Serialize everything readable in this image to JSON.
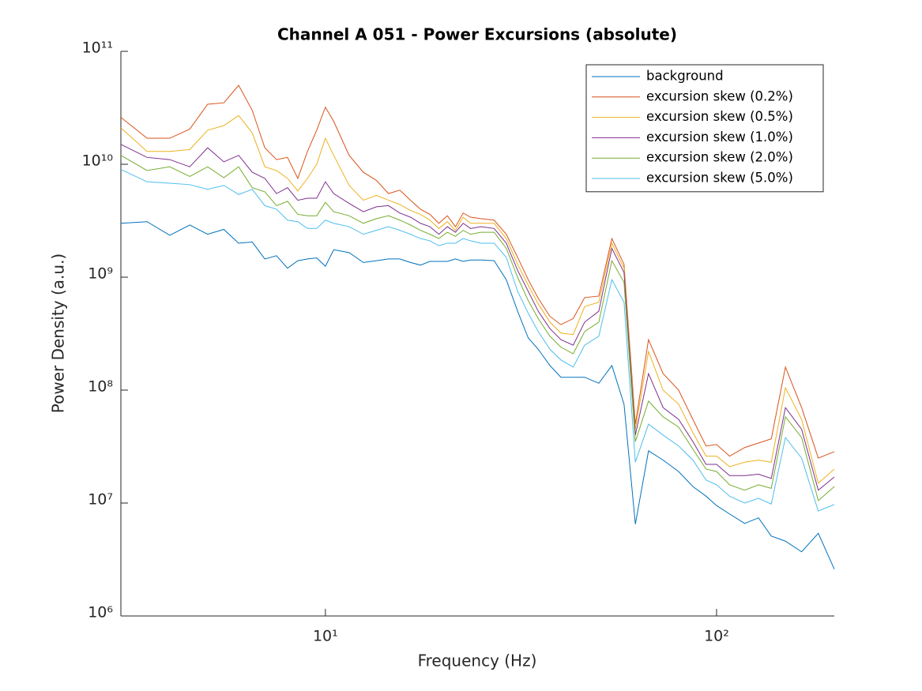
{
  "chart_data": {
    "type": "line",
    "title": "Channel A 051 - Power Excursions (absolute)",
    "x_label": "Frequency (Hz)",
    "y_label": "Power Density (a.u.)",
    "x_scale": "log",
    "y_scale": "log",
    "xlim": [
      3,
      200
    ],
    "ylim": [
      1000000,
      100000000000
    ],
    "xticks": [
      {
        "value": 10,
        "label": "10¹"
      },
      {
        "value": 100,
        "label": "10²"
      }
    ],
    "yticks": [
      {
        "value": 1000000,
        "label": "10⁶"
      },
      {
        "value": 10000000,
        "label": "10⁷"
      },
      {
        "value": 100000000,
        "label": "10⁸"
      },
      {
        "value": 1000000000,
        "label": "10⁹"
      },
      {
        "value": 10000000000,
        "label": "10¹⁰"
      },
      {
        "value": 100000000000,
        "label": "10¹¹"
      }
    ],
    "grid": false,
    "legend_position": "northeast",
    "x": [
      3,
      3.5,
      4,
      4.5,
      5,
      5.5,
      6,
      6.5,
      7,
      7.5,
      8,
      8.5,
      9,
      9.5,
      10,
      10.5,
      11.5,
      12.5,
      13.5,
      14.5,
      15.5,
      16.5,
      17.5,
      18.5,
      19.5,
      20.5,
      21.5,
      22.5,
      23.5,
      25,
      27,
      29,
      31,
      33,
      35,
      37.5,
      40,
      43,
      46,
      50,
      54,
      58,
      62,
      67,
      73,
      80,
      87,
      94,
      100,
      108,
      118,
      128,
      138,
      150,
      165,
      182,
      200
    ],
    "series": [
      {
        "name": "background",
        "color": "#0072BD",
        "values": [
          3000000000.0,
          3100000000.0,
          2350000000.0,
          2900000000.0,
          2400000000.0,
          2650000000.0,
          2000000000.0,
          2050000000.0,
          1450000000.0,
          1550000000.0,
          1200000000.0,
          1400000000.0,
          1450000000.0,
          1480000000.0,
          1250000000.0,
          1750000000.0,
          1650000000.0,
          1350000000.0,
          1400000000.0,
          1450000000.0,
          1450000000.0,
          1350000000.0,
          1280000000.0,
          1380000000.0,
          1380000000.0,
          1380000000.0,
          1450000000.0,
          1380000000.0,
          1420000000.0,
          1420000000.0,
          1400000000.0,
          950000000.0,
          500000000.0,
          290000000.0,
          230000000.0,
          165000000.0,
          130000000.0,
          130000000.0,
          130000000.0,
          115000000.0,
          165000000.0,
          75000000.0,
          6500000.0,
          29000000.0,
          24000000.0,
          19000000.0,
          14000000.0,
          11500000.0,
          9500000.0,
          8000000.0,
          6600000.0,
          7400000.0,
          5100000.0,
          4600000.0,
          3700000.0,
          5400000.0,
          2600000.0
        ]
      },
      {
        "name": "excursion skew (0.2%)",
        "color": "#D95319",
        "values": [
          26000000000.0,
          17000000000.0,
          17000000000.0,
          20500000000.0,
          34000000000.0,
          35000000000.0,
          50000000000.0,
          30000000000.0,
          14000000000.0,
          11000000000.0,
          11500000000.0,
          7500000000.0,
          13000000000.0,
          20000000000.0,
          32000000000.0,
          24000000000.0,
          12000000000.0,
          8500000000.0,
          7200000000.0,
          5500000000.0,
          5900000000.0,
          4800000000.0,
          4000000000.0,
          3600000000.0,
          3000000000.0,
          3500000000.0,
          2800000000.0,
          3700000000.0,
          3400000000.0,
          3300000000.0,
          3200000000.0,
          2400000000.0,
          1500000000.0,
          950000000.0,
          650000000.0,
          450000000.0,
          380000000.0,
          430000000.0,
          660000000.0,
          680000000.0,
          2200000000.0,
          1300000000.0,
          50000000.0,
          280000000.0,
          140000000.0,
          100000000.0,
          55000000.0,
          32000000.0,
          33000000.0,
          26000000.0,
          31000000.0,
          34000000.0,
          37000000.0,
          160000000.0,
          70000000.0,
          25000000.0,
          28500000.0
        ]
      },
      {
        "name": "excursion skew (0.5%)",
        "color": "#EDB120",
        "values": [
          21000000000.0,
          13000000000.0,
          13000000000.0,
          13500000000.0,
          20000000000.0,
          22000000000.0,
          27000000000.0,
          19000000000.0,
          9500000000.0,
          8800000000.0,
          7500000000.0,
          5800000000.0,
          7500000000.0,
          10000000000.0,
          17000000000.0,
          12000000000.0,
          6500000000.0,
          4800000000.0,
          5300000000.0,
          4800000000.0,
          4400000000.0,
          3900000000.0,
          3600000000.0,
          3200000000.0,
          2700000000.0,
          3100000000.0,
          2600000000.0,
          3400000000.0,
          3000000000.0,
          3000000000.0,
          3000000000.0,
          2200000000.0,
          1300000000.0,
          850000000.0,
          580000000.0,
          400000000.0,
          320000000.0,
          310000000.0,
          550000000.0,
          600000000.0,
          2000000000.0,
          1200000000.0,
          45000000.0,
          220000000.0,
          100000000.0,
          75000000.0,
          42000000.0,
          26000000.0,
          26000000.0,
          21000000.0,
          23000000.0,
          24000000.0,
          23000000.0,
          105000000.0,
          55000000.0,
          15000000.0,
          20000000.0
        ]
      },
      {
        "name": "excursion skew (1.0%)",
        "color": "#7E2F8E",
        "values": [
          15000000000.0,
          11500000000.0,
          11000000000.0,
          9500000000.0,
          14000000000.0,
          10500000000.0,
          12000000000.0,
          8500000000.0,
          7500000000.0,
          5500000000.0,
          6200000000.0,
          4800000000.0,
          5000000000.0,
          5000000000.0,
          7000000000.0,
          5500000000.0,
          4500000000.0,
          3800000000.0,
          4200000000.0,
          4300000000.0,
          3700000000.0,
          3400000000.0,
          3000000000.0,
          2800000000.0,
          2400000000.0,
          2800000000.0,
          2500000000.0,
          3000000000.0,
          2700000000.0,
          2800000000.0,
          2700000000.0,
          2000000000.0,
          1150000000.0,
          750000000.0,
          500000000.0,
          350000000.0,
          280000000.0,
          250000000.0,
          400000000.0,
          500000000.0,
          1800000000.0,
          1100000000.0,
          40000000.0,
          140000000.0,
          70000000.0,
          55000000.0,
          35000000.0,
          22000000.0,
          22000000.0,
          17500000.0,
          17500000.0,
          18000000.0,
          16500000.0,
          70000000.0,
          45000000.0,
          13000000.0,
          17000000.0
        ]
      },
      {
        "name": "excursion skew (2.0%)",
        "color": "#77AC30",
        "values": [
          12000000000.0,
          8800000000.0,
          9500000000.0,
          7800000000.0,
          9500000000.0,
          7600000000.0,
          9500000000.0,
          6200000000.0,
          5700000000.0,
          4300000000.0,
          4700000000.0,
          3600000000.0,
          3500000000.0,
          3500000000.0,
          4600000000.0,
          3800000000.0,
          3500000000.0,
          3000000000.0,
          3300000000.0,
          3500000000.0,
          3200000000.0,
          2900000000.0,
          2600000000.0,
          2400000000.0,
          2200000000.0,
          2500000000.0,
          2300000000.0,
          2600000000.0,
          2400000000.0,
          2500000000.0,
          2500000000.0,
          1800000000.0,
          1000000000.0,
          620000000.0,
          430000000.0,
          300000000.0,
          240000000.0,
          210000000.0,
          330000000.0,
          400000000.0,
          1400000000.0,
          900000000.0,
          35000000.0,
          80000000.0,
          58000000.0,
          47000000.0,
          30000000.0,
          20000000.0,
          19000000.0,
          14500000.0,
          13000000.0,
          14500000.0,
          13500000.0,
          58000000.0,
          38000000.0,
          10500000.0,
          14000000.0
        ]
      },
      {
        "name": "excursion skew (5.0%)",
        "color": "#4DBEEE",
        "values": [
          9000000000.0,
          7000000000.0,
          6800000000.0,
          6600000000.0,
          6000000000.0,
          6500000000.0,
          5400000000.0,
          6000000000.0,
          4300000000.0,
          4000000000.0,
          3200000000.0,
          3100000000.0,
          2700000000.0,
          2700000000.0,
          3200000000.0,
          3000000000.0,
          2800000000.0,
          2400000000.0,
          2600000000.0,
          2800000000.0,
          2600000000.0,
          2400000000.0,
          2200000000.0,
          2100000000.0,
          1900000000.0,
          2000000000.0,
          2000000000.0,
          2200000000.0,
          2100000000.0,
          2000000000.0,
          2000000000.0,
          1500000000.0,
          750000000.0,
          480000000.0,
          330000000.0,
          230000000.0,
          185000000.0,
          160000000.0,
          250000000.0,
          300000000.0,
          950000000.0,
          600000000.0,
          23000000.0,
          50000000.0,
          40000000.0,
          32000000.0,
          24000000.0,
          16000000.0,
          14500000.0,
          11500000.0,
          10000000.0,
          11000000.0,
          9800000.0,
          38000000.0,
          25000000.0,
          8500000.0,
          9700000.0
        ]
      }
    ]
  }
}
